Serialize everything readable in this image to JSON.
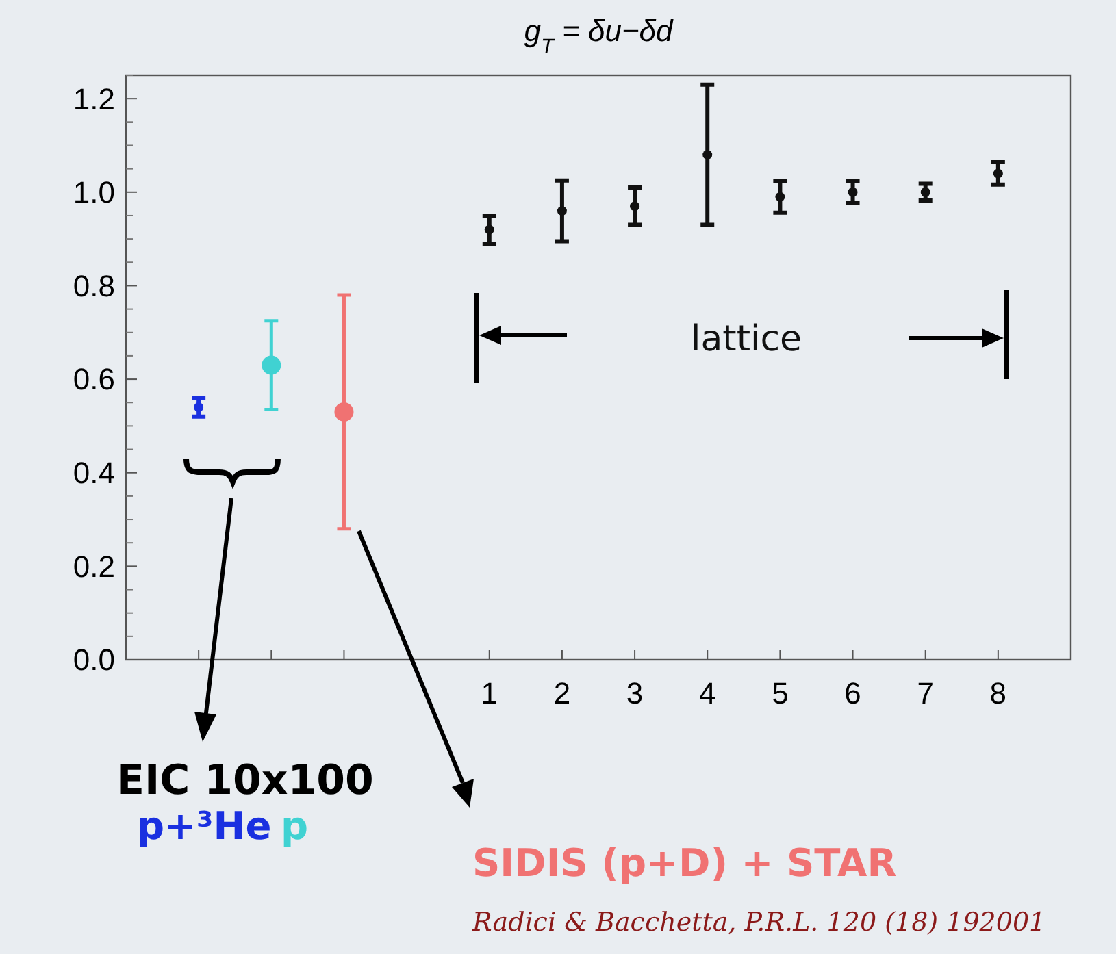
{
  "chart_data": {
    "type": "scatter",
    "title": "g$_{T}$ = δu−δd",
    "xlim": [
      -4,
      9
    ],
    "xticks": [
      {
        "value": -3,
        "label": null
      },
      {
        "value": -2,
        "label": null
      },
      {
        "value": -1,
        "label": null
      },
      1,
      2,
      3,
      4,
      5,
      6,
      7,
      8
    ],
    "ylim": [
      0,
      1.25
    ],
    "yticks": [
      {
        "value": 0,
        "label": "0.0"
      },
      0.2,
      0.4,
      0.6,
      0.8,
      {
        "value": 1,
        "label": "1.0"
      },
      1.2
    ],
    "grid": false,
    "legend": false,
    "marker": "circle",
    "series": [
      {
        "name": "p+³He",
        "color": "#1a30e0",
        "x": [
          -3
        ],
        "values": [
          0.54
        ],
        "errors": [
          0.02
        ]
      },
      {
        "name": "p",
        "color": "#40d2d2",
        "x": [
          -2
        ],
        "values": [
          0.63
        ],
        "errors": [
          0.095
        ]
      },
      {
        "name": "SIDIS (p+D) + STAR",
        "color": "#f07272",
        "x": [
          -1
        ],
        "values": [
          0.53
        ],
        "errors": [
          0.25
        ]
      },
      {
        "name": "lattice",
        "color": "#111111",
        "x": [
          1,
          2,
          3,
          4,
          5,
          6,
          7,
          8
        ],
        "values": [
          0.92,
          0.96,
          0.97,
          1.08,
          0.99,
          1.0,
          1.0,
          1.04
        ],
        "errors": [
          0.03,
          0.065,
          0.04,
          0.15,
          0.034,
          0.023,
          0.018,
          0.024
        ]
      }
    ],
    "annotations": [
      "EIC 10x100",
      "Radici & Bacchetta, P.R.L. 120 (18) 192001"
    ]
  }
}
